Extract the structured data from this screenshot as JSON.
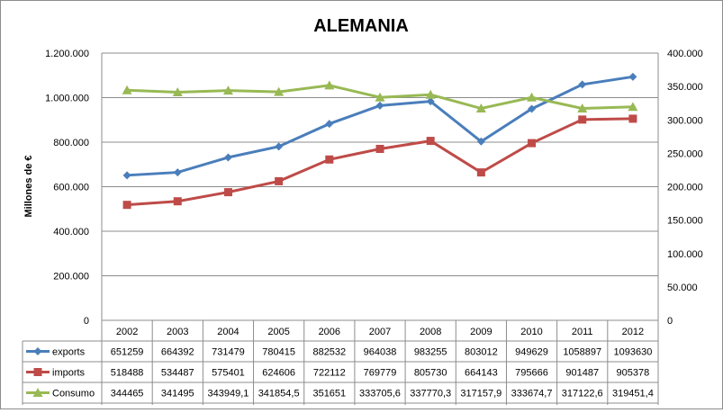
{
  "chart_data": {
    "type": "line",
    "title": "ALEMANIA",
    "ylabel": "Millones de €",
    "ylim": [
      0,
      1200000
    ],
    "y2lim": [
      0,
      400000
    ],
    "y_ticks": [
      "0",
      "200.000",
      "400.000",
      "600.000",
      "800.000",
      "1.000.000",
      "1.200.000"
    ],
    "y2_ticks": [
      "0",
      "50.000",
      "100.000",
      "150.000",
      "200.000",
      "250.000",
      "300.000",
      "350.000",
      "400.000"
    ],
    "categories": [
      "2002",
      "2003",
      "2004",
      "2005",
      "2006",
      "2007",
      "2008",
      "2009",
      "2010",
      "2011",
      "2012"
    ],
    "grid": true,
    "legend": "data-table",
    "series": [
      {
        "name": "exports",
        "axis": "left",
        "color": "#4a7ebb",
        "marker": "diamond",
        "values": [
          651259,
          664392,
          731479,
          780415,
          882532,
          964038,
          983255,
          803012,
          949629,
          1058897,
          1093630
        ],
        "labels": [
          "651259",
          "664392",
          "731479",
          "780415",
          "882532",
          "964038",
          "983255",
          "803012",
          "949629",
          "1058897",
          "1093630"
        ]
      },
      {
        "name": "imports",
        "axis": "left",
        "color": "#be4b48",
        "marker": "square",
        "values": [
          518488,
          534487,
          575401,
          624606,
          722112,
          769779,
          805730,
          664143,
          795666,
          901487,
          905378
        ],
        "labels": [
          "518488",
          "534487",
          "575401",
          "624606",
          "722112",
          "769779",
          "805730",
          "664143",
          "795666",
          "901487",
          "905378"
        ]
      },
      {
        "name": "Consumo",
        "axis": "right",
        "color": "#98b954",
        "marker": "triangle",
        "values": [
          344465,
          341495,
          343949.1,
          341854.5,
          351651,
          333705.6,
          337770.3,
          317157.9,
          333674.7,
          317122.6,
          319451.4
        ],
        "labels": [
          "344465",
          "341495",
          "343949,1",
          "341854,5",
          "351651",
          "333705,6",
          "337770,3",
          "317157,9",
          "333674,7",
          "317122,6",
          "319451,4"
        ]
      }
    ]
  }
}
